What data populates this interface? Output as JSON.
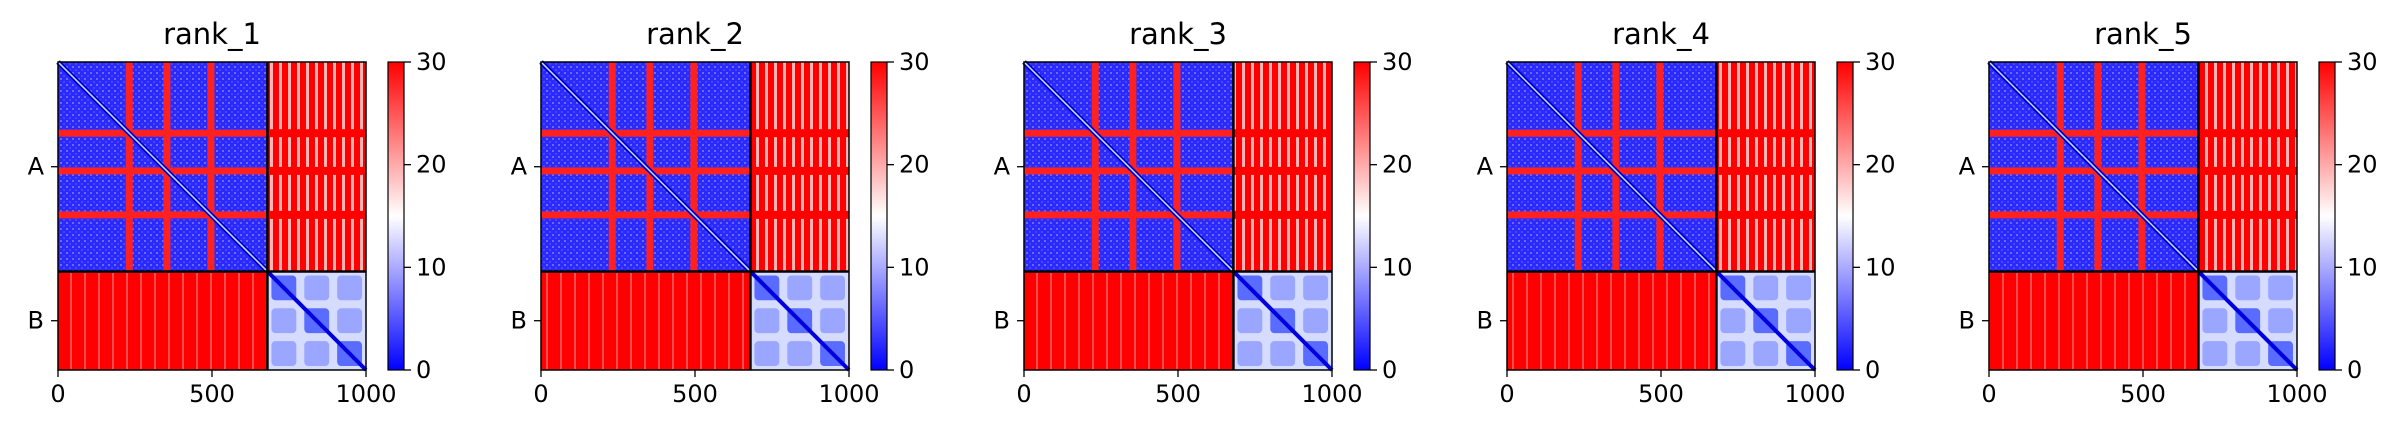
{
  "chart_data": [
    {
      "type": "heatmap",
      "title": "rank_1",
      "x_ticks": [
        0,
        500,
        1000
      ],
      "y_tick_labels": [
        "A",
        "B"
      ],
      "chain_boundary": 680,
      "xlim": [
        0,
        1000
      ],
      "colorbar": {
        "range": [
          0,
          30
        ],
        "ticks": [
          0,
          10,
          20,
          30
        ],
        "colors": [
          "#0000ff",
          "#ffffff",
          "#ff0000"
        ]
      }
    },
    {
      "type": "heatmap",
      "title": "rank_2",
      "x_ticks": [
        0,
        500,
        1000
      ],
      "y_tick_labels": [
        "A",
        "B"
      ],
      "chain_boundary": 680,
      "xlim": [
        0,
        1000
      ],
      "colorbar": {
        "range": [
          0,
          30
        ],
        "ticks": [
          0,
          10,
          20,
          30
        ],
        "colors": [
          "#0000ff",
          "#ffffff",
          "#ff0000"
        ]
      }
    },
    {
      "type": "heatmap",
      "title": "rank_3",
      "x_ticks": [
        0,
        500,
        1000
      ],
      "y_tick_labels": [
        "A",
        "B"
      ],
      "chain_boundary": 680,
      "xlim": [
        0,
        1000
      ],
      "colorbar": {
        "range": [
          0,
          30
        ],
        "ticks": [
          0,
          10,
          20,
          30
        ],
        "colors": [
          "#0000ff",
          "#ffffff",
          "#ff0000"
        ]
      }
    },
    {
      "type": "heatmap",
      "title": "rank_4",
      "x_ticks": [
        0,
        500,
        1000
      ],
      "y_tick_labels": [
        "A",
        "B"
      ],
      "chain_boundary": 680,
      "xlim": [
        0,
        1000
      ],
      "colorbar": {
        "range": [
          0,
          30
        ],
        "ticks": [
          0,
          10,
          20,
          30
        ],
        "colors": [
          "#0000ff",
          "#ffffff",
          "#ff0000"
        ]
      }
    },
    {
      "type": "heatmap",
      "title": "rank_5",
      "x_ticks": [
        0,
        500,
        1000
      ],
      "y_tick_labels": [
        "A",
        "B"
      ],
      "chain_boundary": 680,
      "xlim": [
        0,
        1000
      ],
      "colorbar": {
        "range": [
          0,
          30
        ],
        "ticks": [
          0,
          10,
          20,
          30
        ],
        "colors": [
          "#0000ff",
          "#ffffff",
          "#ff0000"
        ]
      }
    }
  ]
}
